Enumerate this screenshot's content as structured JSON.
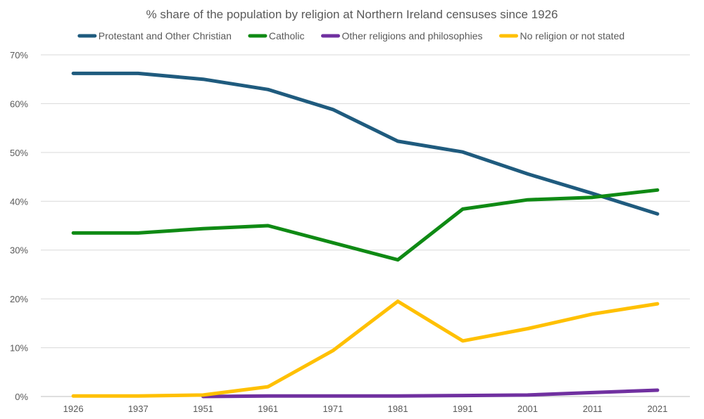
{
  "chart_data": {
    "type": "line",
    "title": "% share of the population by religion at Northern Ireland censuses since 1926",
    "xlabel": "",
    "ylabel": "",
    "categories": [
      "1926",
      "1937",
      "1951",
      "1961",
      "1971",
      "1981",
      "1991",
      "2001",
      "2011",
      "2021"
    ],
    "ylim": [
      0,
      70
    ],
    "yticks": [
      "0%",
      "10%",
      "20%",
      "30%",
      "40%",
      "50%",
      "60%",
      "70%"
    ],
    "grid": true,
    "legend_position": "top",
    "series": [
      {
        "name": "Protestant and Other Christian",
        "color": "#1f5b7e",
        "values": [
          66.2,
          66.2,
          65.0,
          62.9,
          58.8,
          52.3,
          50.1,
          45.6,
          41.6,
          37.4
        ]
      },
      {
        "name": "Catholic",
        "color": "#0f8a14",
        "values": [
          33.5,
          33.5,
          34.4,
          35.0,
          31.5,
          28.0,
          38.4,
          40.3,
          40.8,
          42.3
        ]
      },
      {
        "name": "Other religions and philosophies",
        "color": "#7030a0",
        "values": [
          null,
          null,
          0.0,
          0.1,
          0.1,
          0.1,
          0.2,
          0.3,
          0.8,
          1.3
        ]
      },
      {
        "name": "No religion or not stated",
        "color": "#ffc000",
        "values": [
          0.1,
          0.1,
          0.3,
          2.0,
          9.4,
          19.5,
          11.4,
          13.9,
          16.9,
          19.0
        ]
      }
    ]
  }
}
